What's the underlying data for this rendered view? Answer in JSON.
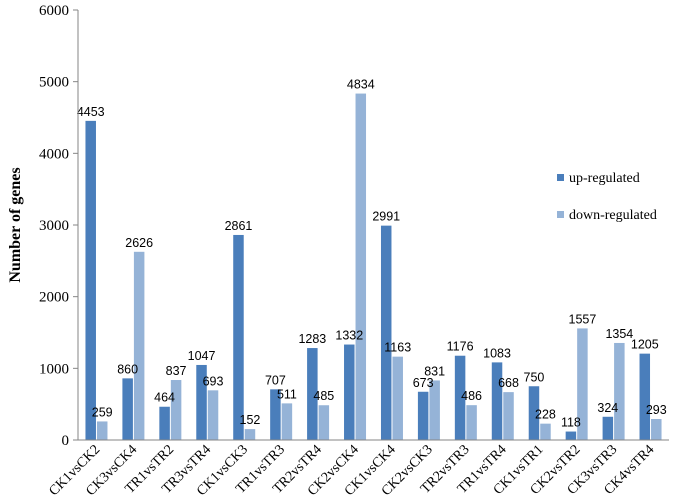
{
  "chart_data": {
    "type": "bar",
    "title": "",
    "xlabel": "",
    "ylabel": "Number of genes",
    "ylim": [
      0,
      6000
    ],
    "yticks": [
      0,
      1000,
      2000,
      3000,
      4000,
      5000,
      6000
    ],
    "grid": false,
    "legend_position": "right",
    "categories": [
      "CK1vsCK2",
      "CK3vsCK4",
      "TR1vsTR2",
      "TR3vsTR4",
      "CK1vsCK3",
      "TR1vsTR3",
      "TR2vsTR4",
      "CK2vsCK4",
      "CK1vsCK4",
      "CK2vsCK3",
      "TR2vsTR3",
      "TR1vsTR4",
      "CK1vsTR1",
      "CK2vsTR2",
      "CK3vsTR3",
      "CK4vsTR4"
    ],
    "series": [
      {
        "name": "up-regulated",
        "color": "#4a7ebb",
        "values": [
          4453,
          860,
          464,
          1047,
          2861,
          707,
          1283,
          1332,
          2991,
          673,
          1176,
          1083,
          750,
          118,
          324,
          1205
        ]
      },
      {
        "name": "down-regulated",
        "color": "#95b3d7",
        "values": [
          259,
          2626,
          837,
          693,
          152,
          511,
          485,
          4834,
          1163,
          831,
          486,
          668,
          228,
          1557,
          1354,
          293
        ]
      }
    ]
  }
}
